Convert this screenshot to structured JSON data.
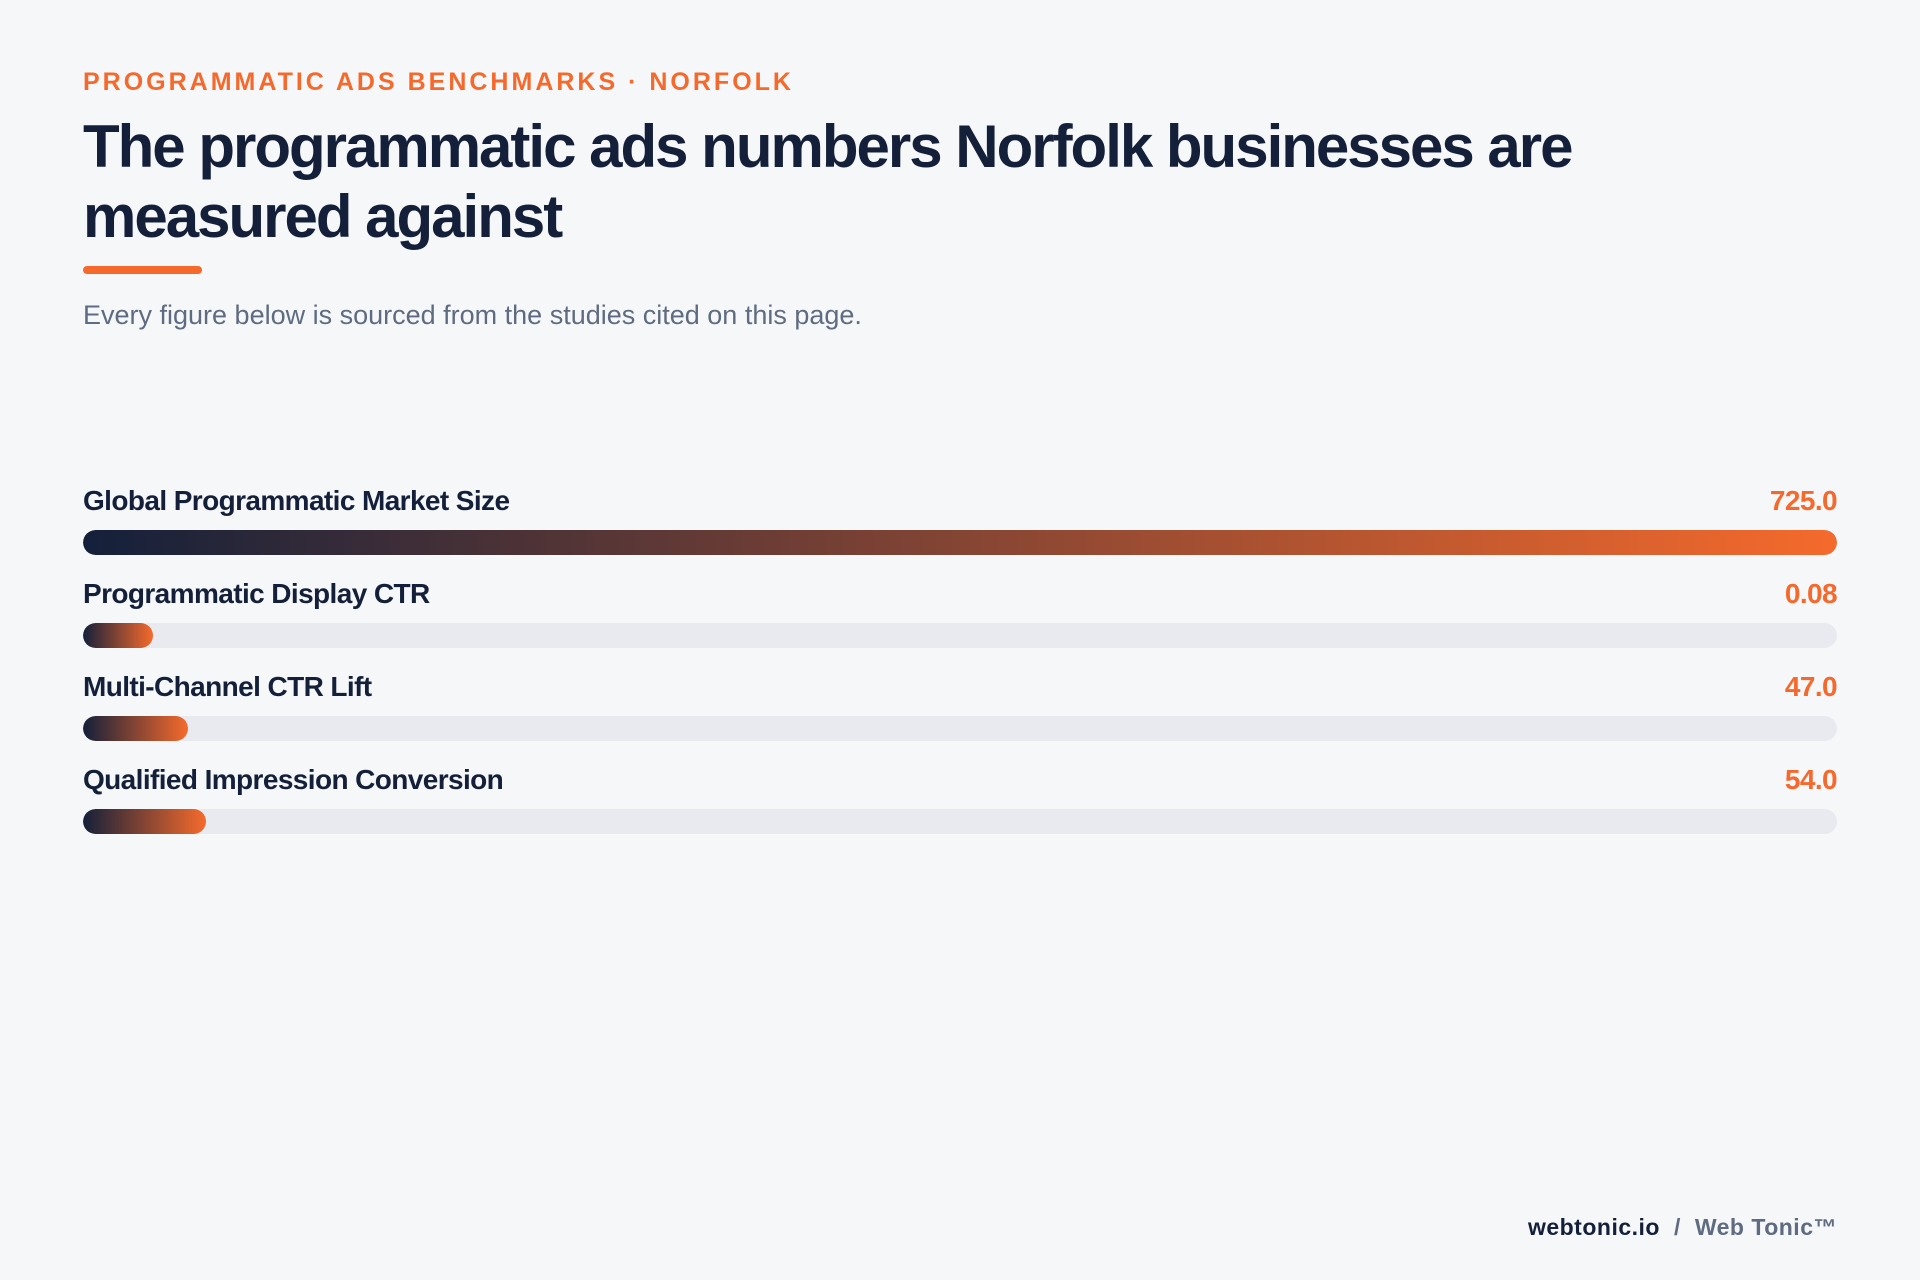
{
  "header": {
    "eyebrow": "PROGRAMMATIC ADS BENCHMARKS · NORFOLK",
    "title": "The programmatic ads numbers Norfolk businesses are measured against",
    "subtitle": "Every figure below is sourced from the studies cited on this page."
  },
  "colors": {
    "accent": "#f56a2c",
    "navy": "#14203a",
    "muted": "#5f6b80",
    "track": "#e8eaf0",
    "background": "#f6f7f9"
  },
  "chart_data": {
    "type": "bar",
    "orientation": "horizontal",
    "categories": [
      "Global Programmatic Market Size",
      "Programmatic Display CTR",
      "Multi-Channel CTR Lift",
      "Qualified Impression Conversion"
    ],
    "values": [
      725.0,
      0.08,
      47.0,
      54.0
    ],
    "value_labels": [
      "725.0",
      "0.08",
      "47.0",
      "54.0"
    ],
    "fill_fraction": [
      1.0,
      0.04,
      0.06,
      0.07
    ],
    "title": "",
    "xlabel": "",
    "ylabel": "",
    "grid": false,
    "legend": "none"
  },
  "footer": {
    "site": "webtonic.io",
    "separator": "/",
    "brand": "Web Tonic™"
  }
}
